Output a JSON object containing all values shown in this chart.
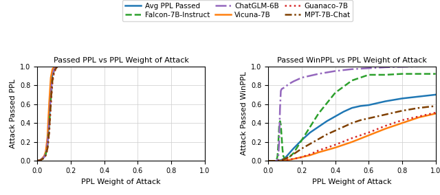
{
  "legend": {
    "entries": [
      {
        "label": "Avg PPL Passed",
        "color": "#1f77b4",
        "linestyle": "solid",
        "linewidth": 1.8,
        "dashes": null
      },
      {
        "label": "Falcon-7B-Instruct",
        "color": "#2ca02c",
        "linestyle": "dashed",
        "linewidth": 1.8,
        "dashes": null
      },
      {
        "label": "ChatGLM-6B",
        "color": "#9467bd",
        "linestyle": "dashdot",
        "linewidth": 1.8,
        "dashes": null
      },
      {
        "label": "Vicuna-7B",
        "color": "#ff7f0e",
        "linestyle": "solid",
        "linewidth": 1.8,
        "dashes": null
      },
      {
        "label": "Guanaco-7B",
        "color": "#d62728",
        "linestyle": "dotted",
        "linewidth": 1.8,
        "dashes": null
      },
      {
        "label": "MPT-7B-Chat",
        "color": "#7f3f00",
        "linestyle": "dashdot",
        "linewidth": 1.8,
        "dashes": [
          4,
          1.5,
          1,
          1.5
        ]
      }
    ]
  },
  "left_plot": {
    "title": "Passed PPL vs PPL Weight of Attack",
    "xlabel": "PPL Weight of Attack",
    "ylabel": "Attack Passed PPL",
    "xlim": [
      0.0,
      1.0
    ],
    "ylim": [
      0.0,
      1.0
    ],
    "series": [
      {
        "label": "Avg PPL Passed",
        "color": "#1f77b4",
        "linestyle": "solid",
        "linewidth": 1.8,
        "dashes": null,
        "x": [
          0.0,
          0.02,
          0.04,
          0.05,
          0.06,
          0.07,
          0.08,
          0.09,
          0.1,
          0.12,
          0.15,
          0.2,
          1.0
        ],
        "y": [
          0.0,
          0.01,
          0.04,
          0.08,
          0.18,
          0.42,
          0.75,
          0.93,
          0.98,
          1.0,
          1.0,
          1.0,
          1.0
        ]
      },
      {
        "label": "Vicuna-7B",
        "color": "#ff7f0e",
        "linestyle": "solid",
        "linewidth": 1.8,
        "dashes": null,
        "x": [
          0.0,
          0.02,
          0.04,
          0.05,
          0.06,
          0.07,
          0.08,
          0.09,
          0.1,
          0.12,
          0.15,
          0.2,
          1.0
        ],
        "y": [
          0.0,
          0.01,
          0.05,
          0.1,
          0.25,
          0.6,
          0.88,
          0.97,
          0.99,
          1.0,
          1.0,
          1.0,
          1.0
        ]
      },
      {
        "label": "Falcon-7B-Instruct",
        "color": "#2ca02c",
        "linestyle": "dashed",
        "linewidth": 1.8,
        "dashes": null,
        "x": [
          0.0,
          0.02,
          0.04,
          0.05,
          0.06,
          0.07,
          0.08,
          0.09,
          0.1,
          0.12,
          0.15,
          0.2,
          1.0
        ],
        "y": [
          0.0,
          0.01,
          0.03,
          0.07,
          0.15,
          0.35,
          0.65,
          0.88,
          0.96,
          1.0,
          1.0,
          1.0,
          1.0
        ]
      },
      {
        "label": "Guanaco-7B",
        "color": "#d62728",
        "linestyle": "dotted",
        "linewidth": 1.8,
        "dashes": null,
        "x": [
          0.0,
          0.02,
          0.04,
          0.05,
          0.06,
          0.07,
          0.08,
          0.09,
          0.1,
          0.12,
          0.15,
          0.2,
          1.0
        ],
        "y": [
          0.0,
          0.01,
          0.03,
          0.06,
          0.12,
          0.28,
          0.58,
          0.83,
          0.94,
          1.0,
          1.0,
          1.0,
          1.0
        ]
      },
      {
        "label": "ChatGLM-6B",
        "color": "#9467bd",
        "linestyle": "dashdot",
        "linewidth": 1.8,
        "dashes": null,
        "x": [
          0.0,
          0.02,
          0.04,
          0.05,
          0.06,
          0.07,
          0.08,
          0.09,
          0.1,
          0.12,
          0.15,
          0.2,
          1.0
        ],
        "y": [
          0.0,
          0.01,
          0.04,
          0.08,
          0.18,
          0.4,
          0.7,
          0.9,
          0.97,
          1.0,
          1.0,
          1.0,
          1.0
        ]
      },
      {
        "label": "MPT-7B-Chat",
        "color": "#7f3f00",
        "linestyle": "dashdot",
        "linewidth": 1.8,
        "dashes": [
          4,
          1.5,
          1,
          1.5
        ],
        "x": [
          0.0,
          0.02,
          0.04,
          0.05,
          0.06,
          0.07,
          0.08,
          0.09,
          0.1,
          0.12,
          0.15,
          0.2,
          1.0
        ],
        "y": [
          0.0,
          0.01,
          0.03,
          0.06,
          0.13,
          0.3,
          0.62,
          0.86,
          0.95,
          1.0,
          1.0,
          1.0,
          1.0
        ]
      }
    ]
  },
  "right_plot": {
    "title": "Passed WinPPL vs PPL Weight of Attack",
    "xlabel": "PPL Weight of Attack",
    "ylabel": "Attack Passed WinPPL",
    "xlim": [
      0.0,
      1.0
    ],
    "ylim": [
      0.0,
      1.0
    ],
    "series": [
      {
        "label": "Avg PPL Passed",
        "color": "#1f77b4",
        "linestyle": "solid",
        "linewidth": 1.8,
        "dashes": null,
        "x": [
          0.0,
          0.05,
          0.08,
          0.1,
          0.12,
          0.15,
          0.2,
          0.25,
          0.3,
          0.35,
          0.4,
          0.45,
          0.5,
          0.55,
          0.6,
          0.7,
          0.8,
          0.9,
          1.0
        ],
        "y": [
          0.0,
          0.0,
          0.01,
          0.03,
          0.07,
          0.13,
          0.22,
          0.3,
          0.36,
          0.42,
          0.47,
          0.52,
          0.56,
          0.58,
          0.59,
          0.63,
          0.66,
          0.68,
          0.7
        ]
      },
      {
        "label": "Vicuna-7B",
        "color": "#ff7f0e",
        "linestyle": "solid",
        "linewidth": 1.8,
        "dashes": null,
        "x": [
          0.0,
          0.05,
          0.08,
          0.1,
          0.12,
          0.15,
          0.2,
          0.25,
          0.3,
          0.4,
          0.5,
          0.6,
          0.7,
          0.8,
          0.9,
          1.0
        ],
        "y": [
          0.0,
          0.0,
          0.0,
          0.0,
          0.01,
          0.02,
          0.04,
          0.06,
          0.09,
          0.14,
          0.2,
          0.27,
          0.34,
          0.4,
          0.46,
          0.5
        ]
      },
      {
        "label": "Falcon-7B-Instruct",
        "color": "#2ca02c",
        "linestyle": "dashed",
        "linewidth": 1.8,
        "dashes": null,
        "x": [
          0.0,
          0.04,
          0.05,
          0.055,
          0.06,
          0.065,
          0.07,
          0.075,
          0.08,
          0.085,
          0.09,
          0.1,
          0.12,
          0.15,
          0.2,
          0.3,
          0.4,
          0.5,
          0.6,
          0.7,
          0.8,
          0.9,
          1.0
        ],
        "y": [
          0.0,
          0.0,
          0.01,
          0.05,
          0.18,
          0.38,
          0.42,
          0.38,
          0.25,
          0.12,
          0.05,
          0.02,
          0.03,
          0.08,
          0.22,
          0.5,
          0.72,
          0.85,
          0.91,
          0.91,
          0.92,
          0.92,
          0.92
        ]
      },
      {
        "label": "Guanaco-7B",
        "color": "#d62728",
        "linestyle": "dotted",
        "linewidth": 1.8,
        "dashes": null,
        "x": [
          0.0,
          0.05,
          0.1,
          0.15,
          0.2,
          0.25,
          0.3,
          0.4,
          0.5,
          0.6,
          0.7,
          0.8,
          0.9,
          1.0
        ],
        "y": [
          0.0,
          0.0,
          0.01,
          0.02,
          0.04,
          0.07,
          0.11,
          0.17,
          0.24,
          0.3,
          0.37,
          0.43,
          0.47,
          0.51
        ]
      },
      {
        "label": "ChatGLM-6B",
        "color": "#9467bd",
        "linestyle": "dashdot",
        "linewidth": 1.8,
        "dashes": null,
        "x": [
          0.0,
          0.04,
          0.05,
          0.055,
          0.06,
          0.065,
          0.07,
          0.075,
          0.08,
          0.09,
          0.1,
          0.12,
          0.15,
          0.2,
          0.3,
          0.4,
          0.5,
          0.6,
          0.7,
          0.8,
          0.9,
          1.0
        ],
        "y": [
          0.0,
          0.0,
          0.0,
          0.01,
          0.05,
          0.2,
          0.55,
          0.74,
          0.76,
          0.77,
          0.78,
          0.81,
          0.84,
          0.88,
          0.92,
          0.95,
          0.97,
          0.98,
          0.99,
          0.995,
          0.998,
          1.0
        ]
      },
      {
        "label": "MPT-7B-Chat",
        "color": "#7f3f00",
        "linestyle": "dashdot",
        "linewidth": 1.8,
        "dashes": [
          4,
          1.5,
          1,
          1.5
        ],
        "x": [
          0.0,
          0.05,
          0.08,
          0.1,
          0.12,
          0.15,
          0.2,
          0.25,
          0.3,
          0.35,
          0.4,
          0.45,
          0.5,
          0.55,
          0.6,
          0.7,
          0.8,
          0.9,
          1.0
        ],
        "y": [
          0.0,
          0.0,
          0.01,
          0.02,
          0.04,
          0.07,
          0.13,
          0.18,
          0.23,
          0.28,
          0.32,
          0.36,
          0.4,
          0.43,
          0.45,
          0.49,
          0.53,
          0.56,
          0.58
        ]
      }
    ]
  }
}
